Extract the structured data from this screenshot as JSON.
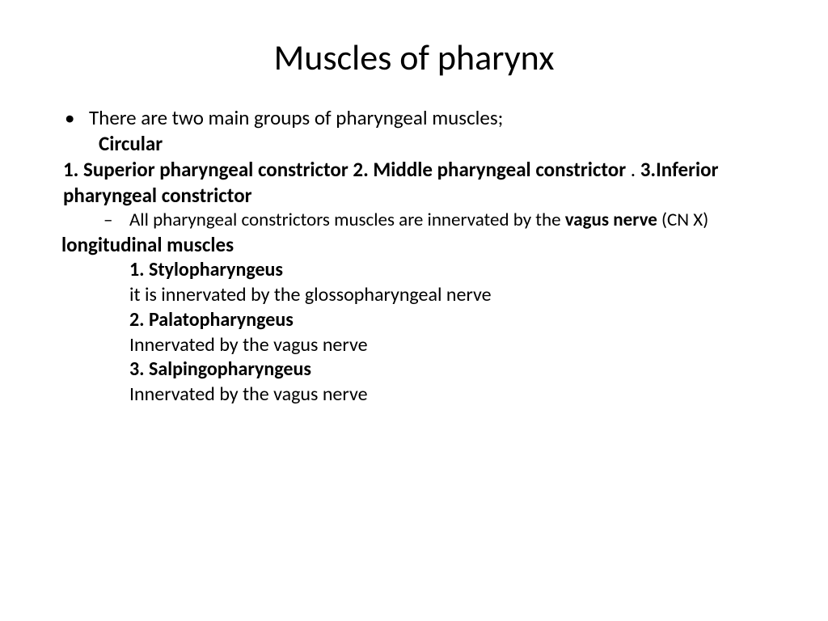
{
  "title": "Muscles of pharynx",
  "line1": "There are two main groups of pharyngeal muscles;",
  "circular_label": "Circular",
  "constrictors_part1": "1. Superior pharyngeal constrictor   2. Middle pharyngeal constrictor",
  "constrictors_dot": " . ",
  "constrictors_part2": "3.Inferior pharyngeal constrictor",
  "innerv_prefix": "All pharyngeal constrictors muscles are innervated by the ",
  "vagus_bold": "vagus nerve",
  "cnx": " (CN X)",
  "longitudinal": "longitudinal muscles",
  "stylo": "1. Stylopharyngeus",
  "stylo_inn": "it is innervated by the glossopharyngeal nerve",
  "palato": "2. Palatopharyngeus",
  "palato_inn": "Innervated by the vagus nerve",
  "salp": "3. Salpingopharyngeus",
  "salp_inn": "Innervated by the vagus nerve"
}
